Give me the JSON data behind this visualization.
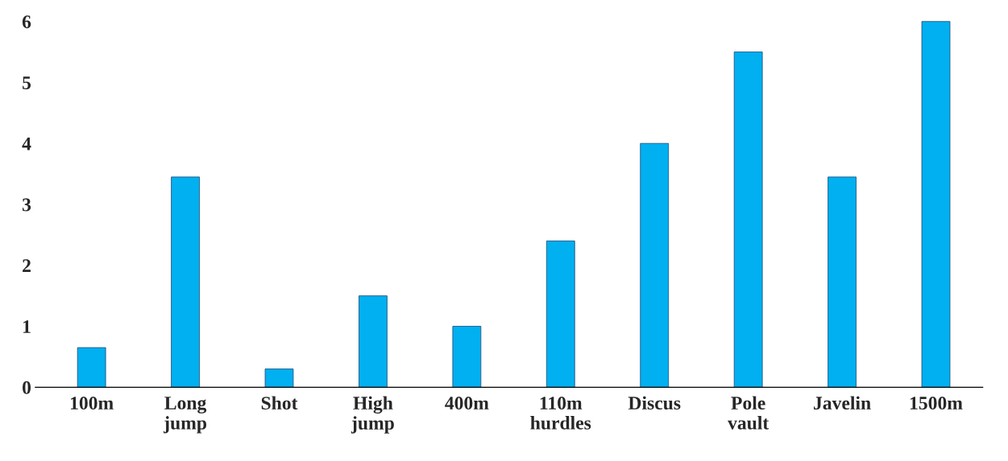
{
  "chart_data": {
    "type": "bar",
    "categories": [
      "100m",
      "Long\njump",
      "Shot",
      "High\njump",
      "400m",
      "110m\nhurdles",
      "Discus",
      "Pole\nvault",
      "Javelin",
      "1500m"
    ],
    "values": [
      0.65,
      3.45,
      0.3,
      1.5,
      1.0,
      2.4,
      4.0,
      5.5,
      3.45,
      6.0
    ],
    "color": "#00b0f0",
    "ylim": [
      0,
      6.05
    ],
    "yticks": [
      0,
      1,
      2,
      3,
      4,
      5,
      6
    ]
  }
}
